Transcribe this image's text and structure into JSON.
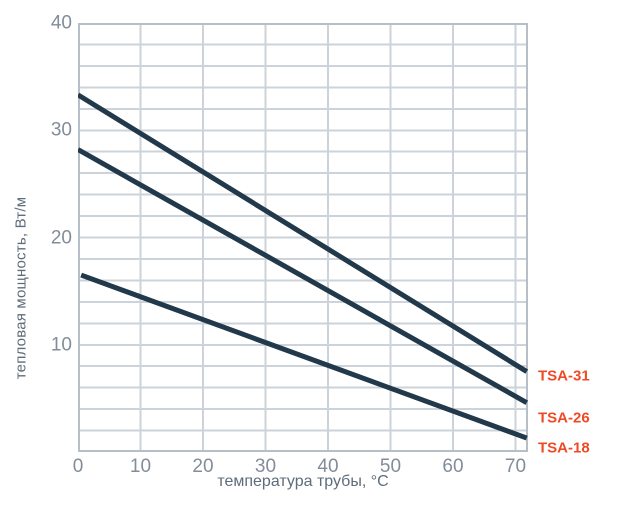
{
  "chart_data": {
    "type": "line",
    "title": "",
    "xlabel": "температура трубы, °C",
    "ylabel": "тепловая мощность, Вт/м",
    "xlim": [
      0,
      72
    ],
    "ylim": [
      0,
      40
    ],
    "x_ticks": [
      0,
      10,
      20,
      30,
      40,
      50,
      60,
      70
    ],
    "y_ticks": [
      10,
      20,
      30,
      40
    ],
    "x_grid_step": 10,
    "y_grid_step": 2,
    "grid": true,
    "legend_position": "right edge, beside each line end",
    "series": [
      {
        "name": "TSA-31",
        "x": [
          0,
          71.8
        ],
        "values": [
          33.3,
          7.5
        ]
      },
      {
        "name": "TSA-26",
        "x": [
          0,
          71.8
        ],
        "values": [
          28.2,
          4.6
        ]
      },
      {
        "name": "TSA-18",
        "x": [
          0.5,
          71.8
        ],
        "values": [
          16.5,
          1.3
        ]
      }
    ]
  },
  "colors": {
    "line": "#21394a",
    "grid": "#ccd3da",
    "plot_border": "#b6bec8",
    "tick_label": "#828d99",
    "axis_title": "#5f6c79",
    "series_label": "#ee4b25",
    "background": "#ffffff"
  }
}
